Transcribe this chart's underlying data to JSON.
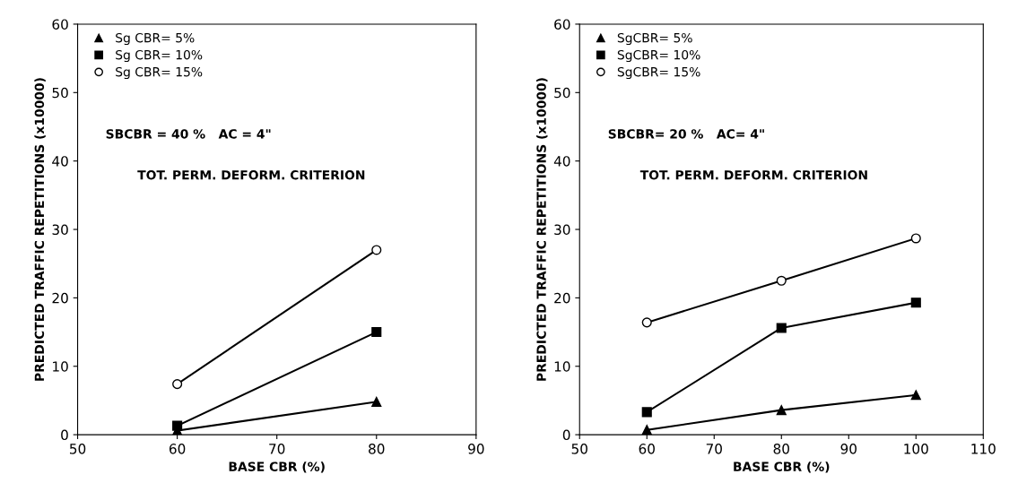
{
  "chart_data": [
    {
      "type": "line",
      "xlabel": "BASE CBR (%)",
      "ylabel": "PREDICTED TRAFFIC REPETITIONS (x10000)",
      "xlim": [
        50,
        90
      ],
      "xticks": [
        50,
        60,
        70,
        80,
        90
      ],
      "ylim": [
        0,
        60
      ],
      "yticks": [
        0,
        10,
        20,
        30,
        40,
        50,
        60
      ],
      "grid": false,
      "legend": "top left",
      "annotations": [
        "SBCBR = 40 %   AC = 4\"",
        "TOT. PERM. DEFORM. CRITERION"
      ],
      "series": [
        {
          "name": "Sg CBR= 5%",
          "color": "#000000",
          "marker": "triangle",
          "x": [
            60,
            80
          ],
          "values": [
            0.6,
            4.8
          ]
        },
        {
          "name": "Sg CBR= 10%",
          "color": "#000000",
          "marker": "square",
          "x": [
            60,
            80
          ],
          "values": [
            1.3,
            15.0
          ]
        },
        {
          "name": "Sg CBR= 15%",
          "color": "#000000",
          "marker": "circle",
          "x": [
            60,
            80
          ],
          "values": [
            7.4,
            27.0
          ]
        }
      ]
    },
    {
      "type": "line",
      "xlabel": "BASE CBR (%)",
      "ylabel": "PREDICTED TRAFFIC REPETITIONS (x10000)",
      "xlim": [
        50,
        110
      ],
      "xticks": [
        50,
        60,
        70,
        80,
        90,
        100,
        110
      ],
      "ylim": [
        0,
        60
      ],
      "yticks": [
        0,
        10,
        20,
        30,
        40,
        50,
        60
      ],
      "grid": false,
      "legend": "top left",
      "annotations": [
        "SBCBR= 20 %   AC= 4\"",
        "TOT. PERM. DEFORM. CRITERION"
      ],
      "series": [
        {
          "name": "SgCBR= 5%",
          "color": "#000000",
          "marker": "triangle",
          "x": [
            60,
            80,
            100
          ],
          "values": [
            0.7,
            3.6,
            5.8
          ]
        },
        {
          "name": "SgCBR= 10%",
          "color": "#000000",
          "marker": "square",
          "x": [
            60,
            80,
            100
          ],
          "values": [
            3.3,
            15.6,
            19.3
          ]
        },
        {
          "name": "SgCBR= 15%",
          "color": "#000000",
          "marker": "circle",
          "x": [
            60,
            80,
            100
          ],
          "values": [
            16.4,
            22.5,
            28.7
          ]
        }
      ]
    }
  ]
}
